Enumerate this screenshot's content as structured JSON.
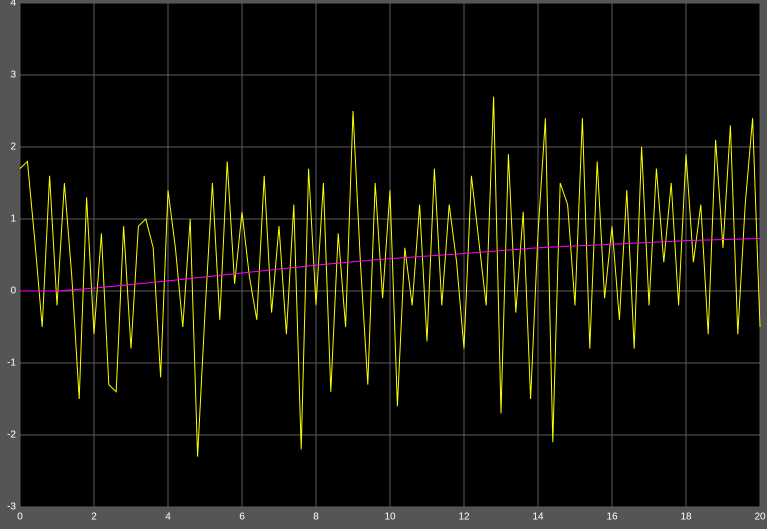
{
  "chart_data": {
    "type": "line",
    "x": [
      0,
      0.2,
      0.4,
      0.6,
      0.8,
      1,
      1.2,
      1.4,
      1.6,
      1.8,
      2,
      2.2,
      2.4,
      2.6,
      2.8,
      3,
      3.2,
      3.4,
      3.6,
      3.8,
      4,
      4.2,
      4.4,
      4.6,
      4.8,
      5,
      5.2,
      5.4,
      5.6,
      5.8,
      6,
      6.2,
      6.4,
      6.6,
      6.8,
      7,
      7.2,
      7.4,
      7.6,
      7.8,
      8,
      8.2,
      8.4,
      8.6,
      8.8,
      9,
      9.2,
      9.4,
      9.6,
      9.8,
      10,
      10.2,
      10.4,
      10.6,
      10.8,
      11,
      11.2,
      11.4,
      11.6,
      11.8,
      12,
      12.2,
      12.4,
      12.6,
      12.8,
      13,
      13.2,
      13.4,
      13.6,
      13.8,
      14,
      14.2,
      14.4,
      14.6,
      14.8,
      15,
      15.2,
      15.4,
      15.6,
      15.8,
      16,
      16.2,
      16.4,
      16.6,
      16.8,
      17,
      17.2,
      17.4,
      17.6,
      17.8,
      18,
      18.2,
      18.4,
      18.6,
      18.8,
      19,
      19.2,
      19.4,
      19.6,
      19.8,
      20
    ],
    "series": [
      {
        "color": "#ffff00",
        "values": [
          1.7,
          1.8,
          0.7,
          -0.5,
          1.6,
          -0.2,
          1.5,
          0.2,
          -1.5,
          1.3,
          -0.6,
          0.8,
          -1.3,
          -1.4,
          0.9,
          -0.8,
          0.9,
          1.0,
          0.6,
          -1.2,
          1.4,
          0.6,
          -0.5,
          1.0,
          -2.3,
          -0.3,
          1.5,
          -0.4,
          1.8,
          0.1,
          1.1,
          0.2,
          -0.4,
          1.6,
          -0.3,
          0.9,
          -0.6,
          1.2,
          -2.2,
          1.7,
          -0.2,
          1.5,
          -1.4,
          0.8,
          -0.5,
          2.5,
          0.4,
          -1.3,
          1.5,
          -0.1,
          1.4,
          -1.6,
          0.6,
          -0.2,
          1.2,
          -0.7,
          1.7,
          -0.2,
          1.2,
          0.4,
          -0.8,
          1.6,
          0.7,
          -0.2,
          2.7,
          -1.7,
          1.9,
          -0.3,
          1.1,
          -1.5,
          0.8,
          2.4,
          -2.1,
          1.5,
          1.2,
          -0.2,
          2.4,
          -0.8,
          1.8,
          -0.1,
          0.9,
          -0.4,
          1.4,
          -0.8,
          2.0,
          -0.2,
          1.7,
          0.4,
          1.5,
          -0.2,
          1.9,
          0.4,
          1.2,
          -0.6,
          2.1,
          0.6,
          2.3,
          -0.6,
          1.2,
          2.4,
          -0.5
        ]
      },
      {
        "color": "#ff00ff",
        "x": [
          0,
          1,
          2,
          4,
          6,
          8,
          10,
          12,
          14,
          16,
          18,
          20
        ],
        "values": [
          0,
          0,
          0.04,
          0.14,
          0.25,
          0.36,
          0.45,
          0.52,
          0.6,
          0.65,
          0.7,
          0.73
        ]
      }
    ],
    "xlim": [
      0,
      20
    ],
    "ylim": [
      -3,
      4
    ],
    "xticks": [
      0,
      2,
      4,
      6,
      8,
      10,
      12,
      14,
      16,
      18,
      20
    ],
    "yticks": [
      -3,
      -2,
      -1,
      0,
      1,
      2,
      3,
      4
    ],
    "grid": true,
    "background": "#000000",
    "grid_color": "#5a5a5a"
  }
}
